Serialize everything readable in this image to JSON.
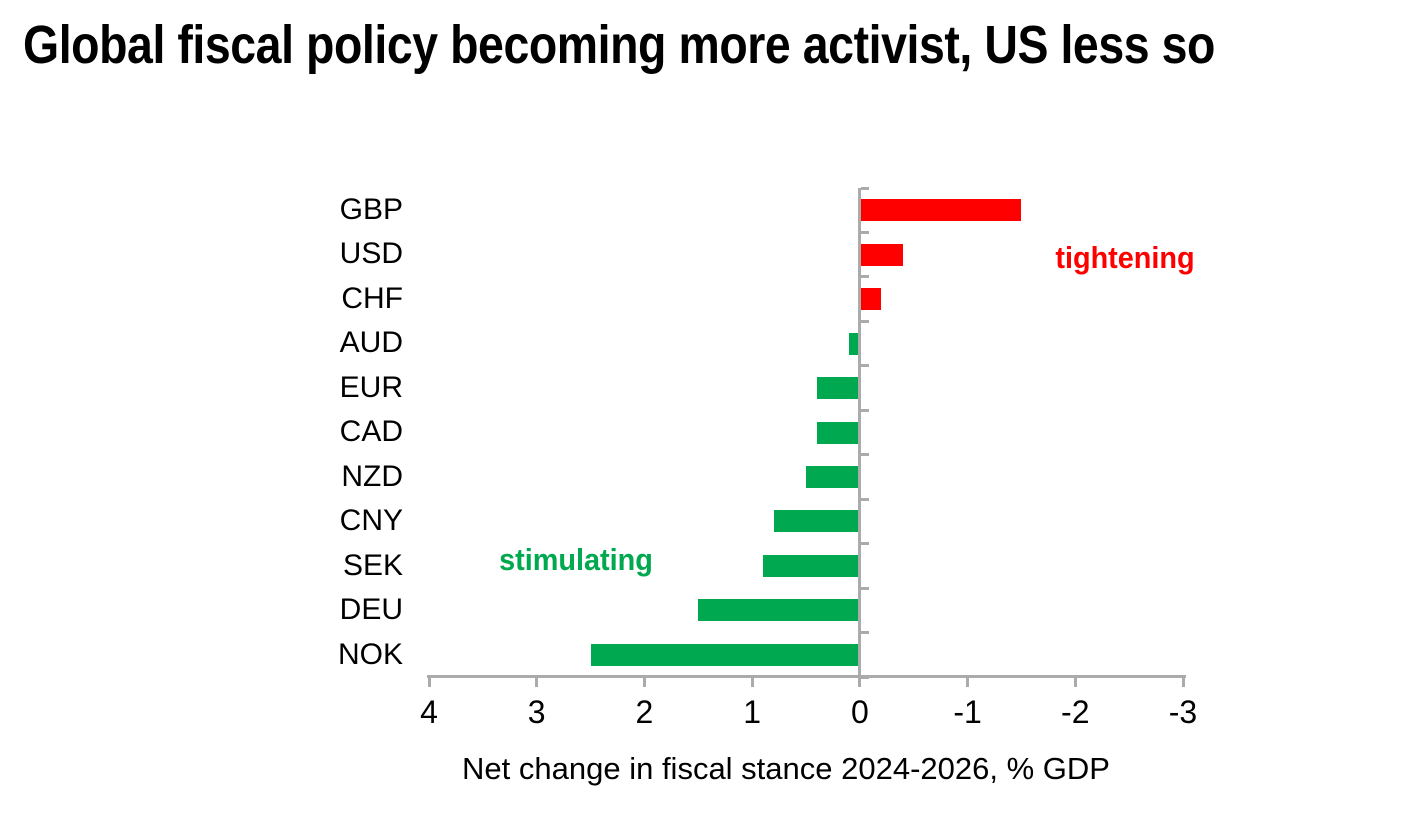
{
  "chart_data": {
    "type": "bar",
    "orientation": "horizontal",
    "title": "Global fiscal policy becoming more activist, US less so",
    "xlabel": "Net change in fiscal stance 2024-2026, % GDP",
    "categories": [
      "GBP",
      "USD",
      "CHF",
      "AUD",
      "EUR",
      "CAD",
      "NZD",
      "CNY",
      "SEK",
      "DEU",
      "NOK"
    ],
    "values": [
      -1.5,
      -0.4,
      -0.2,
      0.1,
      0.4,
      0.4,
      0.5,
      0.8,
      0.9,
      1.5,
      2.5
    ],
    "x_ticks": [
      4,
      3,
      2,
      1,
      0,
      -1,
      -2,
      -3
    ],
    "xlim": [
      4,
      -3
    ],
    "value_axis_reversed": true,
    "grid": false,
    "legend": "none",
    "annotations": [
      {
        "text": "tightening",
        "color": "#FF0000"
      },
      {
        "text": "stimulating",
        "color": "#00A84F"
      }
    ],
    "colors": {
      "positive_bar": "#00A84F",
      "negative_bar": "#FF0000",
      "axis_line": "#ABABAB",
      "text": "#000000"
    }
  }
}
